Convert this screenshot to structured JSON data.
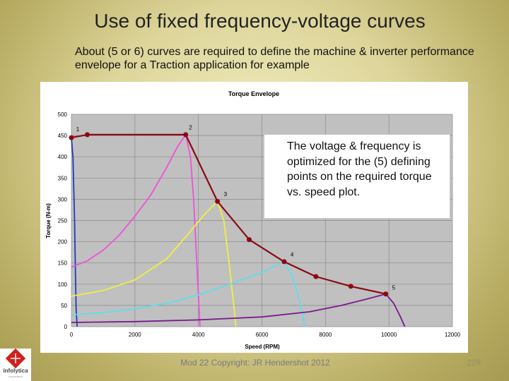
{
  "slide": {
    "title": "Use of fixed frequency-voltage curves",
    "intro": "About (5 or 6) curves are required to define the machine & inverter performance envelope for a Traction application for example",
    "callout": "The voltage & frequency is optimized for the (5) defining points on the required torque vs. speed plot.",
    "footer": "Mod 22 Copyright: JR Hendershot 2012",
    "page_number": "228",
    "logo": {
      "text": "infolytica",
      "subtext": "corporation",
      "icon": "infolytica-logo-icon"
    }
  },
  "colors": {
    "plot_bg": "#c0c0c0",
    "envelope": "#8b0a12",
    "curve_1": "#1f3dbd",
    "curve_2": "#f050d8",
    "curve_3": "#f0f040",
    "curve_4": "#60dcf0",
    "curve_5": "#7a1a8c"
  },
  "chart_data": {
    "type": "line",
    "title": "Torque Envelope",
    "xlabel": "Speed (RPM)",
    "ylabel": "Torque (N-m)",
    "xlim": [
      0,
      12000
    ],
    "ylim": [
      0,
      500
    ],
    "xticks": [
      0,
      2000,
      4000,
      6000,
      8000,
      10000,
      12000
    ],
    "yticks": [
      0,
      50,
      100,
      150,
      200,
      250,
      300,
      350,
      400,
      450,
      500
    ],
    "grid": true,
    "series": [
      {
        "color": "#8b0a12",
        "markers": true,
        "points": [
          [
            0,
            445
          ],
          [
            500,
            452
          ],
          [
            3600,
            452
          ],
          [
            4600,
            295
          ],
          [
            5600,
            205
          ],
          [
            6700,
            153
          ],
          [
            7700,
            118
          ],
          [
            8800,
            95
          ],
          [
            9900,
            77
          ]
        ]
      },
      {
        "color": "#1f3dbd",
        "markers": false,
        "points": [
          [
            0,
            445
          ],
          [
            50,
            400
          ],
          [
            100,
            250
          ],
          [
            130,
            120
          ],
          [
            150,
            40
          ],
          [
            180,
            0
          ]
        ]
      },
      {
        "color": "#f050d8",
        "markers": false,
        "points": [
          [
            0,
            140
          ],
          [
            500,
            155
          ],
          [
            1000,
            180
          ],
          [
            1500,
            215
          ],
          [
            2000,
            260
          ],
          [
            2500,
            310
          ],
          [
            3000,
            375
          ],
          [
            3350,
            425
          ],
          [
            3600,
            452
          ],
          [
            3750,
            400
          ],
          [
            3850,
            300
          ],
          [
            3950,
            150
          ],
          [
            4050,
            0
          ]
        ]
      },
      {
        "color": "#f0f040",
        "markers": false,
        "points": [
          [
            0,
            72
          ],
          [
            1000,
            85
          ],
          [
            2000,
            110
          ],
          [
            3000,
            160
          ],
          [
            3700,
            220
          ],
          [
            4200,
            265
          ],
          [
            4600,
            295
          ],
          [
            4800,
            250
          ],
          [
            4950,
            160
          ],
          [
            5100,
            60
          ],
          [
            5180,
            0
          ]
        ]
      },
      {
        "color": "#60dcf0",
        "markers": false,
        "points": [
          [
            0,
            28
          ],
          [
            1000,
            33
          ],
          [
            2000,
            42
          ],
          [
            3000,
            55
          ],
          [
            4000,
            75
          ],
          [
            5000,
            100
          ],
          [
            6000,
            128
          ],
          [
            6700,
            153
          ],
          [
            6950,
            120
          ],
          [
            7150,
            70
          ],
          [
            7300,
            20
          ],
          [
            7350,
            0
          ]
        ]
      },
      {
        "color": "#7a1a8c",
        "markers": false,
        "points": [
          [
            0,
            10
          ],
          [
            2000,
            12
          ],
          [
            4000,
            16
          ],
          [
            6000,
            23
          ],
          [
            7500,
            35
          ],
          [
            8500,
            50
          ],
          [
            9300,
            65
          ],
          [
            9900,
            77
          ],
          [
            10150,
            55
          ],
          [
            10350,
            25
          ],
          [
            10500,
            0
          ]
        ]
      }
    ],
    "annotations": [
      {
        "text": "1",
        "x": 150,
        "y": 460
      },
      {
        "text": "2",
        "x": 3700,
        "y": 464
      },
      {
        "text": "3",
        "x": 4800,
        "y": 307
      },
      {
        "text": "4",
        "x": 6900,
        "y": 165
      },
      {
        "text": "5",
        "x": 10100,
        "y": 87
      }
    ]
  }
}
